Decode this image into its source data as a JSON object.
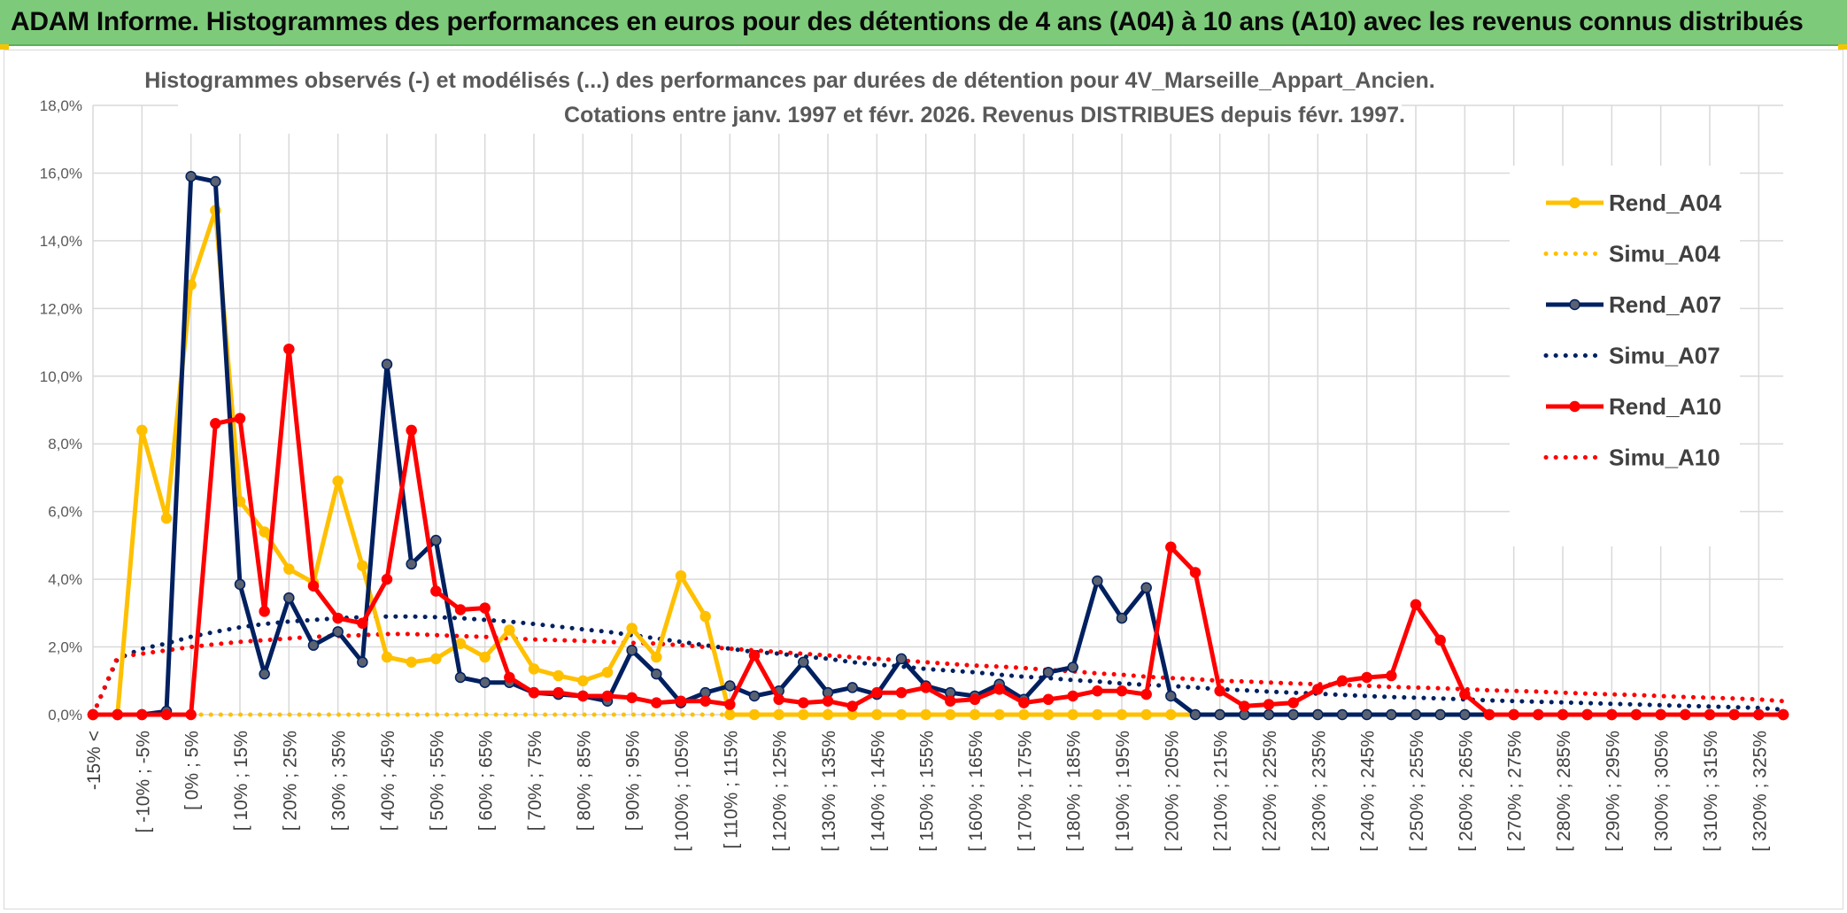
{
  "header": {
    "title": "ADAM Informe. Histogrammes des performances en euros pour des détentions de 4 ans (A04) à 10 ans (A10) avec les revenus connus distribués"
  },
  "chart_data": {
    "type": "line",
    "title_line1": "Histogrammes observés (-) et modélisés (...) des performances par durées de détention pour 4V_Marseille_Appart_Ancien.",
    "title_line2": "Cotations entre janv. 1997 et févr. 2026. Revenus DISTRIBUES depuis févr. 1997.",
    "ylim": [
      0,
      18
    ],
    "yticks": [
      "0,0%",
      "2,0%",
      "4,0%",
      "6,0%",
      "8,0%",
      "10,0%",
      "12,0%",
      "14,0%",
      "16,0%",
      "18,0%"
    ],
    "xtick_labels": [
      "-15% <",
      "[ -10% ; -5%",
      "[ 0% ; 5%",
      "[ 10% ; 15%",
      "[ 20% ; 25%",
      "[ 30% ; 35%",
      "[ 40% ; 45%",
      "[ 50% ; 55%",
      "[ 60% ; 65%",
      "[ 70% ; 75%",
      "[ 80% ; 85%",
      "[ 90% ; 95%",
      "[ 100% ; 105%",
      "[ 110% ; 115%",
      "[ 120% ; 125%",
      "[ 130% ; 135%",
      "[ 140% ; 145%",
      "[ 150% ; 155%",
      "[ 160% ; 165%",
      "[ 170% ; 175%",
      "[ 180% ; 185%",
      "[ 190% ; 195%",
      "[ 200% ; 205%",
      "[ 210% ; 215%",
      "[ 220% ; 225%",
      "[ 230% ; 235%",
      "[ 240% ; 245%",
      "[ 250% ; 255%",
      "[ 260% ; 265%",
      "[ 270% ; 275%",
      "[ 280% ; 285%",
      "[ 290% ; 295%",
      "[ 300% ; 305%",
      "[ 310% ; 315%",
      "[ 320% ; 325%"
    ],
    "category_count": 70,
    "legend_position": "right",
    "series": [
      {
        "name": "Rend_A04",
        "style": "solid",
        "color": "#FFC000",
        "values": [
          0,
          0,
          8.4,
          5.8,
          12.7,
          14.9,
          6.3,
          5.4,
          4.3,
          3.9,
          6.9,
          4.4,
          1.7,
          1.55,
          1.65,
          2.1,
          1.7,
          2.5,
          1.35,
          1.15,
          1.0,
          1.25,
          2.55,
          1.7,
          4.1,
          2.9,
          0,
          0,
          0,
          0,
          0,
          0,
          0,
          0,
          0,
          0,
          0,
          0,
          0,
          0,
          0,
          0,
          0,
          0,
          0,
          0,
          0,
          0,
          0,
          0,
          0,
          0,
          0,
          0,
          0,
          0,
          0,
          0,
          0,
          0,
          0,
          0,
          0,
          0,
          0,
          0,
          0,
          0,
          0,
          0
        ]
      },
      {
        "name": "Simu_A04",
        "style": "dotted",
        "color": "#FFC000",
        "values": [
          0,
          0,
          0,
          0,
          0,
          0,
          0,
          0,
          0,
          0,
          0,
          0,
          0,
          0,
          0,
          0,
          0,
          0,
          0,
          0,
          0,
          0,
          0,
          0,
          0,
          0,
          0,
          0,
          0,
          0,
          0,
          0,
          0,
          0,
          0,
          0,
          0,
          0,
          0,
          0,
          0,
          0,
          0,
          0,
          0,
          0,
          0,
          0,
          0,
          0,
          0,
          0,
          0,
          0,
          0,
          0,
          0,
          0,
          0,
          0,
          0,
          0,
          0,
          0,
          0,
          0,
          0,
          0,
          0,
          0
        ]
      },
      {
        "name": "Rend_A07",
        "style": "solid",
        "color": "#002060",
        "values": [
          0,
          0,
          0,
          0.1,
          15.9,
          15.75,
          3.85,
          1.2,
          3.45,
          2.05,
          2.45,
          1.55,
          10.35,
          4.45,
          5.15,
          1.1,
          0.95,
          0.95,
          0.65,
          0.6,
          0.55,
          0.4,
          1.9,
          1.2,
          0.35,
          0.65,
          0.85,
          0.55,
          0.7,
          1.55,
          0.65,
          0.8,
          0.6,
          1.65,
          0.85,
          0.65,
          0.55,
          0.9,
          0.45,
          1.25,
          1.4,
          3.95,
          2.85,
          3.75,
          0.55,
          0,
          0,
          0,
          0,
          0,
          0,
          0,
          0,
          0,
          0,
          0,
          0,
          0,
          0,
          0,
          0,
          0,
          0,
          0,
          0,
          0,
          0,
          0,
          0,
          0
        ]
      },
      {
        "name": "Simu_A07",
        "style": "dotted",
        "color": "#002060",
        "values": [
          0,
          1.65,
          1.95,
          2.1,
          2.3,
          2.45,
          2.58,
          2.68,
          2.75,
          2.8,
          2.85,
          2.88,
          2.9,
          2.9,
          2.88,
          2.85,
          2.8,
          2.75,
          2.68,
          2.6,
          2.52,
          2.45,
          2.35,
          2.25,
          2.15,
          2.05,
          1.95,
          1.85,
          1.8,
          1.72,
          1.65,
          1.55,
          1.48,
          1.42,
          1.35,
          1.3,
          1.25,
          1.18,
          1.12,
          1.08,
          1.02,
          0.98,
          0.92,
          0.88,
          0.85,
          0.8,
          0.75,
          0.72,
          0.68,
          0.65,
          0.62,
          0.58,
          0.55,
          0.52,
          0.5,
          0.48,
          0.45,
          0.42,
          0.4,
          0.38,
          0.36,
          0.34,
          0.32,
          0.3,
          0.28,
          0.26,
          0.24,
          0.22,
          0.2,
          0.15
        ]
      },
      {
        "name": "Rend_A10",
        "style": "solid",
        "color": "#FF0000",
        "values": [
          0,
          0,
          0,
          0,
          0,
          8.6,
          8.75,
          3.05,
          10.8,
          3.8,
          2.85,
          2.7,
          4.0,
          8.4,
          3.65,
          3.1,
          3.15,
          1.1,
          0.65,
          0.65,
          0.55,
          0.55,
          0.5,
          0.35,
          0.4,
          0.4,
          0.3,
          1.75,
          0.45,
          0.35,
          0.4,
          0.25,
          0.65,
          0.65,
          0.8,
          0.4,
          0.45,
          0.75,
          0.35,
          0.45,
          0.55,
          0.7,
          0.7,
          0.6,
          4.95,
          4.2,
          0.7,
          0.25,
          0.3,
          0.35,
          0.75,
          1.0,
          1.1,
          1.15,
          3.25,
          2.2,
          0.6,
          0,
          0,
          0,
          0,
          0,
          0,
          0,
          0,
          0,
          0,
          0,
          0,
          0
        ]
      },
      {
        "name": "Simu_A10",
        "style": "dotted",
        "color": "#FF0000",
        "values": [
          0,
          1.7,
          1.8,
          1.9,
          2.0,
          2.08,
          2.15,
          2.2,
          2.25,
          2.3,
          2.32,
          2.35,
          2.38,
          2.38,
          2.35,
          2.32,
          2.3,
          2.25,
          2.22,
          2.2,
          2.18,
          2.15,
          2.12,
          2.1,
          2.05,
          2.0,
          1.95,
          1.9,
          1.85,
          1.8,
          1.75,
          1.7,
          1.65,
          1.6,
          1.55,
          1.5,
          1.45,
          1.42,
          1.38,
          1.32,
          1.28,
          1.22,
          1.18,
          1.12,
          1.08,
          1.05,
          1.0,
          0.98,
          0.95,
          0.92,
          0.9,
          0.88,
          0.85,
          0.82,
          0.8,
          0.78,
          0.75,
          0.72,
          0.7,
          0.68,
          0.65,
          0.62,
          0.6,
          0.58,
          0.55,
          0.52,
          0.5,
          0.48,
          0.45,
          0.4
        ]
      }
    ]
  }
}
